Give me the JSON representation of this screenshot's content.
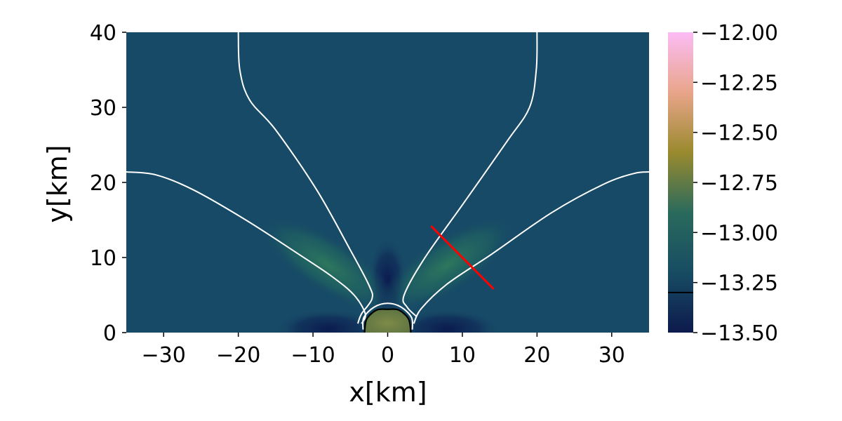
{
  "chart_data": {
    "type": "heatmap",
    "title": "",
    "xlabel": "x[km]",
    "ylabel": "y[km]",
    "xlim": [
      -35,
      35
    ],
    "ylim": [
      0,
      40
    ],
    "x_ticks": [
      -30,
      -20,
      -10,
      0,
      10,
      20,
      30
    ],
    "x_tick_labels": [
      "−30",
      "−20",
      "−10",
      "0",
      "10",
      "20",
      "30"
    ],
    "y_ticks": [
      0,
      10,
      20,
      30,
      40
    ],
    "y_tick_labels": [
      "0",
      "10",
      "20",
      "30",
      "40"
    ],
    "grid": false,
    "colorbar": {
      "range": [
        -13.5,
        -12.0
      ],
      "ticks": [
        -13.5,
        -13.25,
        -13.0,
        -12.75,
        -12.5,
        -12.25,
        -12.0
      ],
      "tick_labels": [
        "−13.50",
        "−13.25",
        "−13.00",
        "−12.75",
        "−12.50",
        "−12.25",
        "−12.00"
      ],
      "marker_value": -13.3,
      "colors": [
        "#0d1a4d",
        "#174c63",
        "#2a6a5c",
        "#9a8a2e",
        "#e9a58a",
        "#fbbcf5"
      ]
    },
    "field": {
      "background_value": -13.22,
      "background_color": "#174a66",
      "jet_peak_value": -13.02,
      "jet_color": "#2f7a5c",
      "core_value": -12.85,
      "core_color": "#6e7e42",
      "low_region_color": "#0b1b4f"
    },
    "contours": [
      {
        "name": "outer-left",
        "color": "#ffffff",
        "points": [
          [
            -35,
            21.4
          ],
          [
            -31,
            21
          ],
          [
            -26,
            19
          ],
          [
            -19,
            15
          ],
          [
            -12,
            10.5
          ],
          [
            -7.5,
            7.5
          ],
          [
            -4.5,
            5
          ],
          [
            -3,
            2.5
          ],
          [
            -3.5,
            1.2
          ]
        ]
      },
      {
        "name": "inner-left",
        "color": "#ffffff",
        "points": [
          [
            -20,
            40
          ],
          [
            -19.8,
            35
          ],
          [
            -18.5,
            31
          ],
          [
            -15,
            27
          ],
          [
            -9.5,
            19
          ],
          [
            -5,
            11
          ],
          [
            -2.5,
            6.3
          ],
          [
            -2.1,
            4.5
          ],
          [
            -3.5,
            2.5
          ],
          [
            -4,
            1.2
          ]
        ]
      },
      {
        "name": "inner-right",
        "color": "#ffffff",
        "points": [
          [
            20,
            40
          ],
          [
            19.9,
            35
          ],
          [
            19,
            30
          ],
          [
            16,
            25.5
          ],
          [
            10,
            17
          ],
          [
            5,
            10
          ],
          [
            2.2,
            5
          ],
          [
            2.6,
            3.4
          ],
          [
            3.8,
            2.2
          ]
        ]
      },
      {
        "name": "outer-right",
        "color": "#ffffff",
        "points": [
          [
            35,
            21.4
          ],
          [
            33,
            21.2
          ],
          [
            29,
            19.8
          ],
          [
            22,
            16
          ],
          [
            14,
            10.5
          ],
          [
            8,
            6.5
          ],
          [
            4.5,
            3.2
          ],
          [
            3.5,
            1.2
          ]
        ]
      },
      {
        "name": "core-outer",
        "color": "#ffffff",
        "points": [
          [
            -3.3,
            0.4
          ],
          [
            -3.2,
            2
          ],
          [
            -1.8,
            3.4
          ],
          [
            0,
            3.9
          ],
          [
            1.8,
            3.4
          ],
          [
            3.2,
            2
          ],
          [
            3.3,
            0.4
          ]
        ]
      },
      {
        "name": "core-boundary",
        "color": "#000000",
        "points": [
          [
            -3.1,
            0
          ],
          [
            -2.8,
            1.8
          ],
          [
            -1.5,
            3
          ],
          [
            0,
            3.1
          ],
          [
            1.5,
            3
          ],
          [
            2.8,
            1.8
          ],
          [
            3.1,
            0
          ]
        ]
      }
    ],
    "annotations": [
      {
        "name": "red-line",
        "color": "#ff0000",
        "points": [
          [
            5.8,
            14.2
          ],
          [
            14.2,
            5.8
          ]
        ]
      }
    ]
  }
}
